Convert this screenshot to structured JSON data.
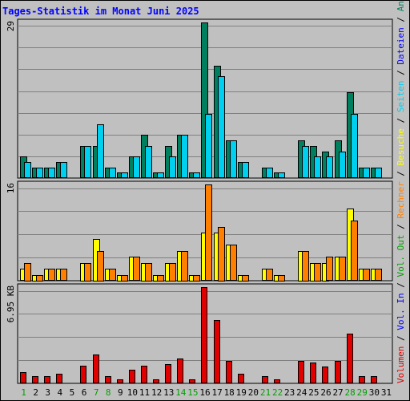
{
  "chart_data": {
    "type": "bar",
    "title": "Tages-Statistik im Monat Juni 2025",
    "categories": [
      "1",
      "2",
      "3",
      "4",
      "5",
      "6",
      "7",
      "8",
      "9",
      "10",
      "11",
      "12",
      "13",
      "14",
      "15",
      "16",
      "17",
      "18",
      "19",
      "20",
      "21",
      "22",
      "23",
      "24",
      "25",
      "26",
      "27",
      "28",
      "29",
      "30",
      "31"
    ],
    "weekend_days": [
      "1",
      "7",
      "8",
      "14",
      "15",
      "21",
      "22",
      "28",
      "29"
    ],
    "panels": [
      {
        "max_label": "29",
        "ylim": [
          0,
          29
        ],
        "series": [
          {
            "name": "Anfragen",
            "color": "#007f5f",
            "values": [
              4,
              2,
              2,
              3,
              0,
              6,
              6,
              2,
              1,
              4,
              8,
              1,
              6,
              8,
              1,
              29,
              21,
              7,
              3,
              0,
              2,
              1,
              0,
              7,
              6,
              5,
              7,
              16,
              2,
              2,
              0
            ]
          },
          {
            "name": "Seiten",
            "color": "#00d0f0",
            "values": [
              3,
              2,
              2,
              3,
              0,
              6,
              10,
              2,
              1,
              4,
              6,
              1,
              4,
              8,
              1,
              12,
              19,
              7,
              3,
              0,
              2,
              1,
              0,
              6,
              4,
              4,
              5,
              12,
              2,
              2,
              0
            ]
          },
          {
            "name": "Dateien",
            "color": "#0000ff",
            "values": []
          }
        ]
      },
      {
        "max_label": "16",
        "ylim": [
          0,
          16
        ],
        "series": [
          {
            "name": "Besuche",
            "color": "#ffff00",
            "values": [
              2,
              1,
              2,
              2,
              0,
              3,
              7,
              2,
              1,
              4,
              3,
              1,
              3,
              5,
              1,
              8,
              8,
              6,
              1,
              0,
              2,
              1,
              0,
              5,
              3,
              3,
              4,
              12,
              2,
              2,
              0
            ]
          },
          {
            "name": "Rechner",
            "color": "#ff8000",
            "values": [
              3,
              1,
              2,
              2,
              0,
              3,
              5,
              2,
              1,
              4,
              3,
              1,
              3,
              5,
              1,
              16,
              9,
              6,
              1,
              0,
              2,
              1,
              0,
              5,
              3,
              4,
              4,
              10,
              2,
              2,
              0
            ]
          }
        ]
      },
      {
        "max_label": "6.95 KB",
        "ylim": [
          0,
          6.95
        ],
        "series": [
          {
            "name": "Vol. Out",
            "color": "#00a000",
            "values": []
          },
          {
            "name": "Vol. In",
            "color": "#0000ff",
            "values": []
          },
          {
            "name": "Volumen",
            "color": "#e00000",
            "values": [
              0.8,
              0.5,
              0.5,
              0.7,
              0,
              1.3,
              2.1,
              0.5,
              0.3,
              1.0,
              1.3,
              0.3,
              1.4,
              1.8,
              0.3,
              6.95,
              4.6,
              1.6,
              0.7,
              0,
              0.5,
              0.3,
              0,
              1.6,
              1.5,
              1.2,
              1.6,
              3.6,
              0.5,
              0.5,
              0
            ]
          }
        ]
      }
    ],
    "legend_right": [
      {
        "text": "Anfragen",
        "color": "#007f5f"
      },
      {
        "text": " / ",
        "color": "#000000"
      },
      {
        "text": "Dateien",
        "color": "#0000ff"
      },
      {
        "text": " / ",
        "color": "#000000"
      },
      {
        "text": "Seiten",
        "color": "#00d0f0"
      },
      {
        "text": " / ",
        "color": "#000000"
      },
      {
        "text": "Besuche",
        "color": "#ffff00"
      },
      {
        "text": " / ",
        "color": "#000000"
      },
      {
        "text": "Rechner",
        "color": "#ff8000"
      },
      {
        "text": " / ",
        "color": "#000000"
      },
      {
        "text": "Vol. Out",
        "color": "#00a000"
      },
      {
        "text": " / ",
        "color": "#000000"
      },
      {
        "text": "Vol. In",
        "color": "#0000ff"
      },
      {
        "text": " / ",
        "color": "#000000"
      },
      {
        "text": "Volumen",
        "color": "#e00000"
      }
    ],
    "colors": {
      "background": "#c0c0c0",
      "grid": "#808080",
      "weekday_label": "#000000",
      "weekend_label": "#00a000",
      "title": "#0000ff"
    }
  }
}
